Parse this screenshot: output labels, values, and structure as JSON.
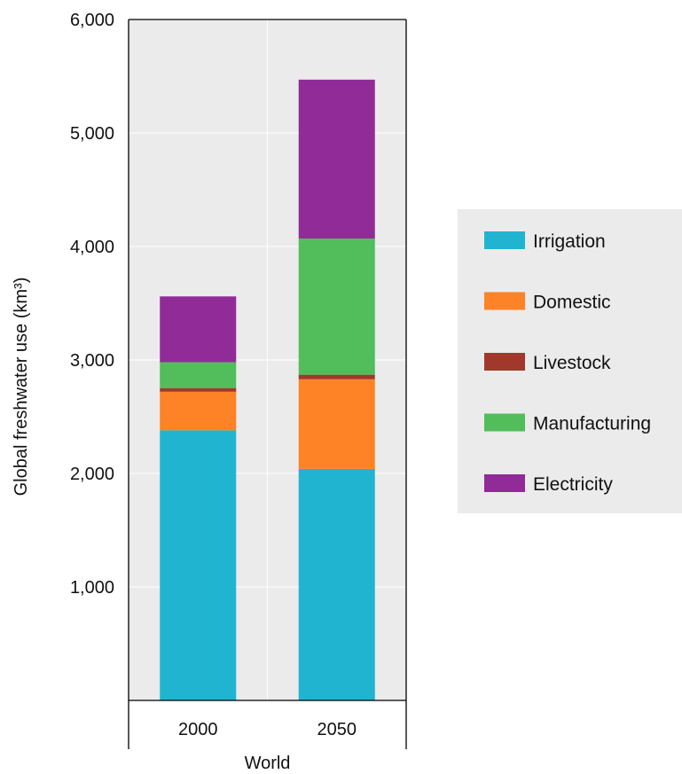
{
  "chart_data": {
    "type": "bar",
    "stacked": true,
    "categories": [
      "2000",
      "2050"
    ],
    "group_label": "World",
    "ylabel": "Global freshwater use (km³)",
    "xlabel": "",
    "ylim": [
      0,
      6000
    ],
    "yticks": [
      1000,
      2000,
      3000,
      4000,
      5000,
      6000
    ],
    "ytick_labels": [
      "1,000",
      "2,000",
      "3,000",
      "4,000",
      "5,000",
      "6,000"
    ],
    "grid": true,
    "legend_position": "right",
    "series": [
      {
        "name": "Irrigation",
        "color": "#21b4d0",
        "values": [
          2380,
          2040
        ]
      },
      {
        "name": "Domestic",
        "color": "#fd8326",
        "values": [
          340,
          790
        ]
      },
      {
        "name": "Livestock",
        "color": "#a0392c",
        "values": [
          30,
          40
        ]
      },
      {
        "name": "Manufacturing",
        "color": "#52bd5b",
        "values": [
          230,
          1200
        ]
      },
      {
        "name": "Electricity",
        "color": "#912b97",
        "values": [
          580,
          1400
        ]
      }
    ],
    "plot_background": "#ebebeb",
    "legend_background": "#ebebeb"
  }
}
